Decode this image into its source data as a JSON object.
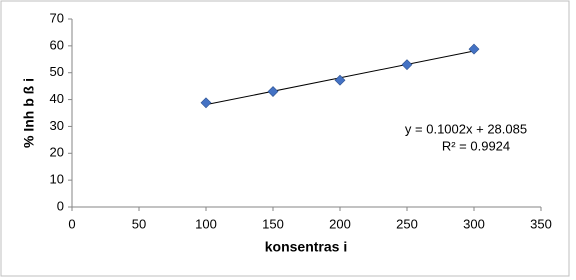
{
  "chart_data": {
    "type": "scatter",
    "x_label": "konsentras i",
    "y_label": "% Inh b ß i",
    "series": [
      {
        "name": "% Inh b ß i",
        "color": "#4472c4",
        "x": [
          100,
          150,
          200,
          250,
          300
        ],
        "values": [
          38.8,
          43,
          47.2,
          53,
          58.8
        ]
      }
    ],
    "trendline": {
      "color": "#000000",
      "x": [
        100,
        300
      ],
      "values": [
        38.1,
        58.1
      ]
    },
    "annotations": [
      "y = 0.1002x + 28.085",
      "R² = 0.9924"
    ],
    "xlim": [
      0,
      350
    ],
    "xticks": [
      0,
      50,
      100,
      150,
      200,
      250,
      300,
      350
    ],
    "ylim": [
      0,
      70
    ],
    "yticks": [
      0,
      10,
      20,
      30,
      40,
      50,
      60,
      70
    ]
  }
}
